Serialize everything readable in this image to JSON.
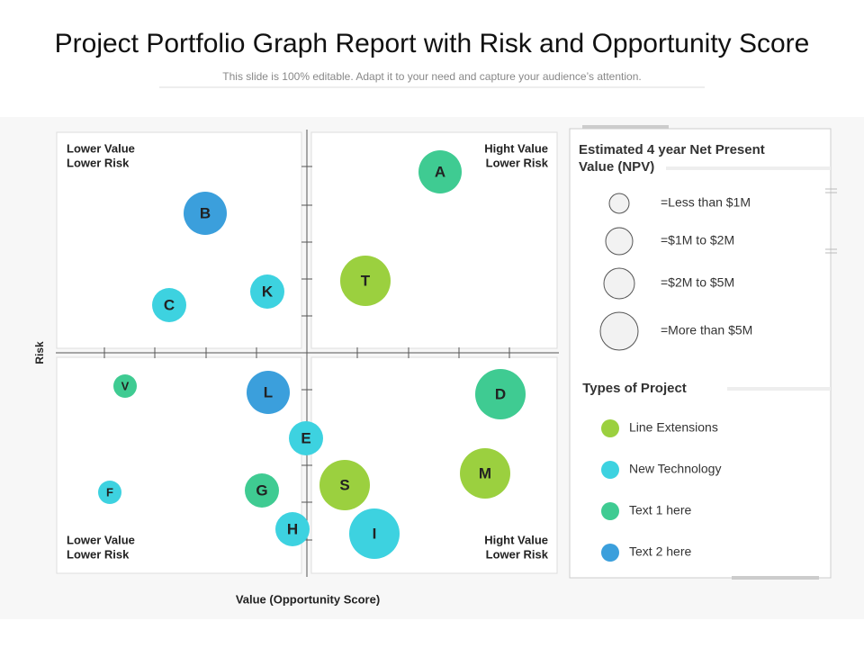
{
  "header": {
    "title": "Project Portfolio Graph Report with Risk and Opportunity Score",
    "subtitle": "This slide is 100% editable. Adapt it to your need and capture your audience’s attention."
  },
  "quadrants": [
    {
      "lines": [
        "Lower Value",
        "Lower Risk"
      ]
    },
    {
      "lines": [
        "Hight Value",
        "Lower Risk"
      ]
    },
    {
      "lines": [
        "Lower Value",
        "Lower Risk"
      ]
    },
    {
      "lines": [
        "Hight Value",
        "Lower Risk"
      ]
    }
  ],
  "axes": {
    "y_label": "Risk",
    "x_label": "Value (Opportunity  Score)"
  },
  "bubbles": [
    {
      "label": "A",
      "color": "#3fcb92"
    },
    {
      "label": "B",
      "color": "#3b9fdc"
    },
    {
      "label": "C",
      "color": "#3dd2e0"
    },
    {
      "label": "K",
      "color": "#3dd2e0"
    },
    {
      "label": "T",
      "color": "#9bd03f"
    },
    {
      "label": "V",
      "color": "#3fcb92"
    },
    {
      "label": "L",
      "color": "#3b9fdc"
    },
    {
      "label": "D",
      "color": "#3fcb92"
    },
    {
      "label": "E",
      "color": "#3dd2e0"
    },
    {
      "label": "M",
      "color": "#9bd03f"
    },
    {
      "label": "F",
      "color": "#3dd2e0"
    },
    {
      "label": "G",
      "color": "#3fcb92"
    },
    {
      "label": "S",
      "color": "#9bd03f"
    },
    {
      "label": "H",
      "color": "#3dd2e0"
    },
    {
      "label": "I",
      "color": "#3dd2e0"
    }
  ],
  "legend": {
    "title": "Estimated 4 year Net Present Value (NPV)",
    "sizes": [
      "=Less than $1M",
      "=$1M to $2M",
      "=$2M to $5M",
      "=More than $5M"
    ],
    "types_title": "Types of Project",
    "types": [
      {
        "label": "Line Extensions",
        "color": "#9bd03f"
      },
      {
        "label": "New  Technology",
        "color": "#3dd2e0"
      },
      {
        "label": "Text 1 here",
        "color": "#3fcb92"
      },
      {
        "label": "Text 2 here",
        "color": "#3b9fdc"
      }
    ]
  }
}
